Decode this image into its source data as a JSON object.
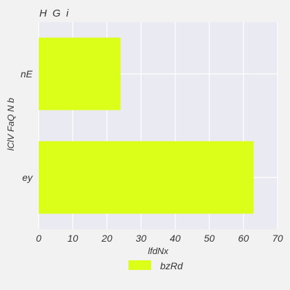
{
  "chart_data": {
    "type": "bar",
    "orientation": "horizontal",
    "title": "H G i",
    "xlabel": "lfdNx",
    "ylabel": "lClV FaQ N b",
    "categories": [
      "nE",
      "ey"
    ],
    "series": [
      {
        "name": "bzRd",
        "values": [
          24,
          63
        ]
      }
    ],
    "xlim": [
      0,
      70
    ],
    "xticks": [
      0,
      10,
      20,
      30,
      40,
      50,
      60,
      70
    ],
    "grid": true,
    "legend": "bottom-center",
    "colors": {
      "bar": "#dcff1a",
      "plot_bg": "#eaeaf2",
      "page_bg": "#f2f2f2",
      "grid": "#ffffff",
      "text": "#333333"
    }
  }
}
